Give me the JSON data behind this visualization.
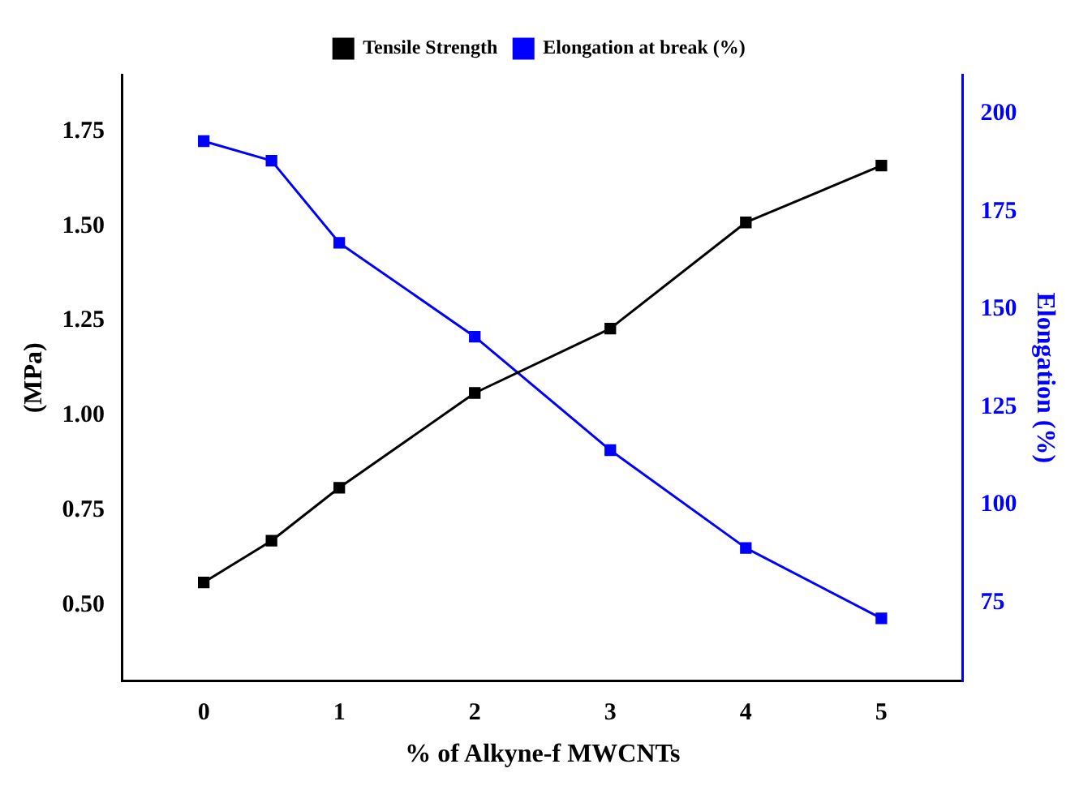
{
  "chart_data": {
    "type": "line",
    "xlabel": "% of Alkyne-f MWCNTs",
    "ylabel": "(MPa)",
    "y2label": "Elongation (%)",
    "x": [
      0,
      0.5,
      1,
      2,
      3,
      4,
      5
    ],
    "series": [
      {
        "name": "Tensile Strength",
        "color": "#000000",
        "values": [
          0.56,
          0.67,
          0.81,
          1.06,
          1.23,
          1.51,
          1.66
        ]
      },
      {
        "name": "Elongation at break (%)",
        "color": "#0000ff",
        "axis": "y2",
        "values": [
          193,
          188,
          167,
          143,
          114,
          89,
          71
        ]
      }
    ],
    "xlim": [
      -0.6,
      5.6
    ],
    "xticks": [
      0,
      1,
      2,
      3,
      4,
      5
    ],
    "ylim": [
      0.3,
      1.9
    ],
    "yticks": [
      {
        "value": 0.5,
        "label": "0.50"
      },
      0.75,
      {
        "value": 1,
        "label": "1.00"
      },
      1.25,
      {
        "value": 1.5,
        "label": "1.50"
      },
      1.75
    ],
    "y2lim": [
      55,
      210
    ],
    "y2ticks": [
      75,
      100,
      125,
      150,
      175,
      200
    ],
    "marker": "square",
    "line_style": "solid",
    "legend": "top",
    "grid": false
  }
}
